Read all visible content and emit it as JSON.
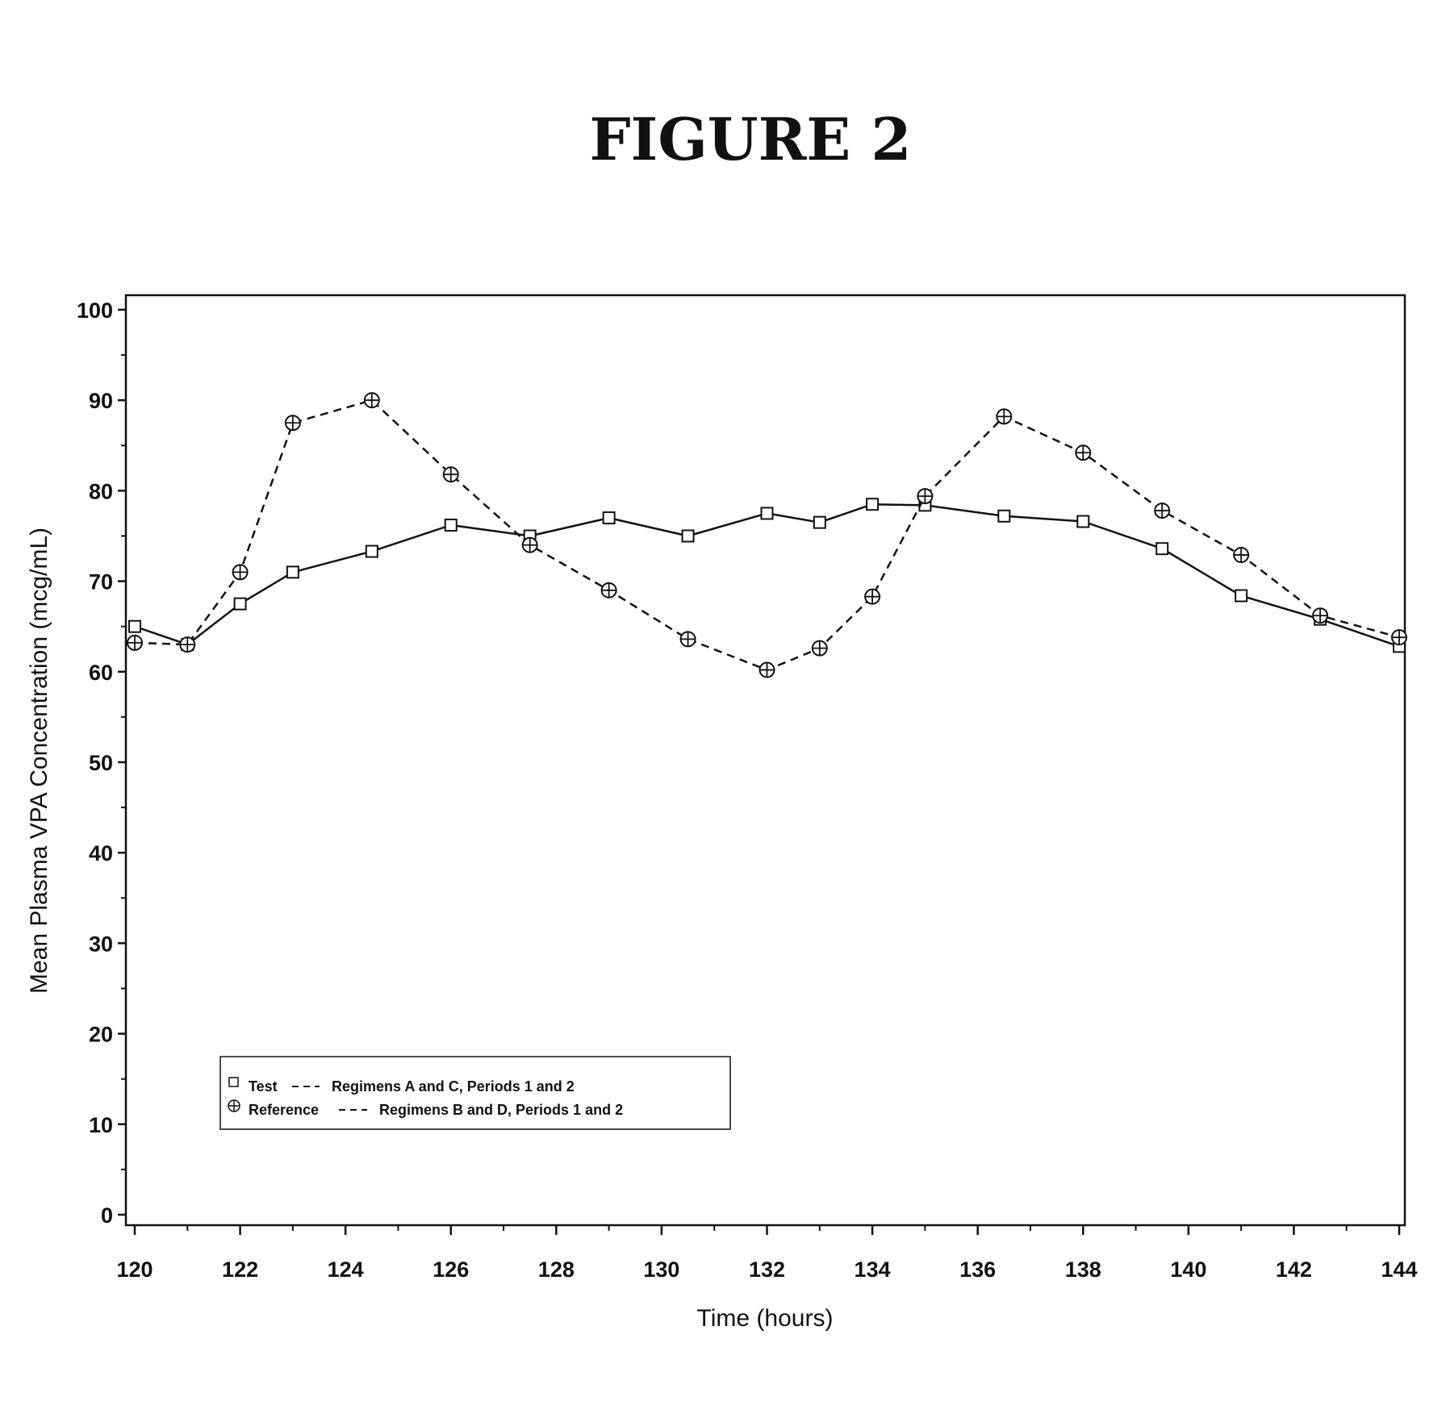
{
  "figure": {
    "title": "FIGURE 2"
  },
  "chart_data": {
    "type": "line",
    "title": "FIGURE 2",
    "xlabel": "Time  (hours)",
    "ylabel": "Mean Plasma VPA Concentration  (mcg/mL)",
    "xlim": [
      120,
      144
    ],
    "ylim": [
      0,
      100
    ],
    "xticks": [
      120,
      122,
      124,
      126,
      128,
      130,
      132,
      134,
      136,
      138,
      140,
      142,
      144
    ],
    "yticks": [
      0,
      10,
      20,
      30,
      40,
      50,
      60,
      70,
      80,
      90,
      100
    ],
    "grid": false,
    "legend_position": "lower-left",
    "series": [
      {
        "marker": "square",
        "line_style": "solid",
        "color": "#111111",
        "legend_marker_label": "Test",
        "legend_line_label": "Regimens A and C, Periods 1 and 2",
        "x": [
          120,
          121,
          122,
          123,
          124.5,
          126,
          127.5,
          129,
          130.5,
          132,
          133,
          134,
          135,
          136.5,
          138,
          139.5,
          141,
          142.5,
          144
        ],
        "y": [
          65,
          63,
          67.5,
          71,
          73.3,
          76.2,
          75,
          77,
          75,
          77.5,
          76.5,
          78.5,
          78.4,
          77.2,
          76.6,
          73.6,
          68.4,
          65.8,
          62.8
        ]
      },
      {
        "marker": "circle-plus",
        "line_style": "dashed",
        "color": "#111111",
        "legend_marker_label": "Reference",
        "legend_line_label": "Regimens B and D, Periods 1 and 2",
        "x": [
          120,
          121,
          122,
          123,
          124.5,
          126,
          127.5,
          129,
          130.5,
          132,
          133,
          134,
          135,
          136.5,
          138,
          139.5,
          141,
          142.5,
          144
        ],
        "y": [
          63.2,
          63,
          71,
          87.5,
          90,
          81.8,
          74,
          69,
          63.6,
          60.2,
          62.6,
          68.3,
          79.4,
          88.2,
          84.2,
          77.8,
          72.9,
          66.2,
          63.8
        ]
      }
    ]
  }
}
